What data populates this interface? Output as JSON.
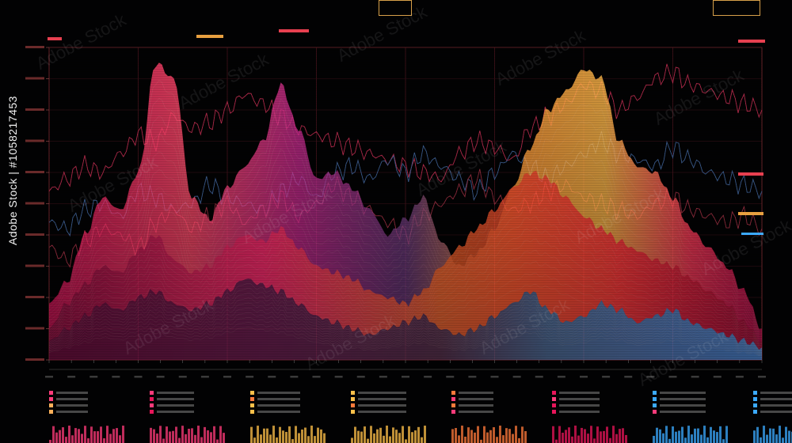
{
  "chart_data": {
    "type": "area",
    "x": [
      0,
      1,
      2,
      3,
      4,
      5,
      6,
      7,
      8,
      9,
      10,
      11,
      12,
      13,
      14,
      15,
      16,
      17,
      18,
      19,
      20,
      21,
      22,
      23,
      24,
      25,
      26,
      27,
      28,
      29,
      30,
      31,
      32,
      33,
      34,
      35,
      36,
      37,
      38,
      39,
      40
    ],
    "series": [
      {
        "values": [
          18,
          25,
          40,
          52,
          48,
          60,
          95,
          90,
          52,
          45,
          55,
          62,
          70,
          88,
          74,
          58,
          60,
          55,
          48,
          40,
          45,
          52,
          38,
          30,
          34,
          42,
          55,
          68,
          80,
          86,
          93,
          90,
          70,
          62,
          60,
          52,
          42,
          36,
          30,
          22,
          10
        ]
      },
      {
        "values": [
          10,
          18,
          24,
          30,
          28,
          35,
          40,
          32,
          28,
          30,
          36,
          40,
          38,
          42,
          36,
          30,
          28,
          26,
          22,
          20,
          18,
          22,
          30,
          36,
          42,
          48,
          55,
          60,
          58,
          52,
          46,
          42,
          38,
          35,
          32,
          30,
          26,
          22,
          18,
          12,
          6
        ]
      },
      {
        "values": [
          6,
          10,
          14,
          18,
          16,
          20,
          22,
          18,
          16,
          18,
          22,
          26,
          24,
          22,
          18,
          14,
          12,
          10,
          8,
          10,
          12,
          14,
          10,
          8,
          10,
          14,
          18,
          22,
          16,
          12,
          14,
          18,
          16,
          12,
          14,
          16,
          12,
          10,
          8,
          6,
          4
        ]
      }
    ],
    "lines": [
      {
        "values": [
          54,
          58,
          62,
          60,
          66,
          72,
          70,
          78,
          74,
          76,
          80,
          85,
          82,
          78,
          74,
          72,
          70,
          68,
          66,
          64,
          62,
          60,
          58,
          66,
          70,
          68,
          64,
          74,
          78,
          82,
          88,
          86,
          80,
          84,
          90,
          92,
          88,
          86,
          84,
          82,
          80
        ]
      },
      {
        "values": [
          44,
          42,
          48,
          50,
          46,
          54,
          52,
          48,
          50,
          56,
          52,
          50,
          48,
          54,
          58,
          52,
          60,
          62,
          58,
          64,
          60,
          66,
          62,
          58,
          54,
          60,
          66,
          62,
          58,
          62,
          66,
          70,
          66,
          64,
          62,
          68,
          64,
          60,
          58,
          56,
          54
        ]
      },
      {
        "values": [
          36,
          32,
          38,
          42,
          40,
          36,
          44,
          48,
          42,
          46,
          50,
          44,
          48,
          52,
          46,
          50,
          56,
          52,
          48,
          44,
          40,
          46,
          50,
          54,
          58,
          52,
          48,
          50,
          54,
          56,
          52,
          50,
          48,
          46,
          50,
          52,
          48,
          46,
          44,
          46,
          42
        ]
      }
    ],
    "ylim": [
      0,
      100
    ],
    "grid": true,
    "palette": [
      "#ff3b7a",
      "#ff7a3b",
      "#ffc04a",
      "#8a3bd1",
      "#3ba9ff",
      "#e8155a"
    ]
  },
  "legend": [
    {
      "color": "#ff3b7a",
      "items": [
        "#ff3b7a",
        "#ff3b7a",
        "#ffb05a",
        "#ffb05a"
      ]
    },
    {
      "color": "#ff3b7a",
      "items": [
        "#ff3b7a",
        "#e8155a",
        "#ff3b7a",
        "#e8155a"
      ]
    },
    {
      "color": "#ffc04a",
      "items": [
        "#ffc04a",
        "#ff7a3b",
        "#ffc04a",
        "#ffc04a"
      ]
    },
    {
      "color": "#ffc04a",
      "items": [
        "#ffc04a",
        "#ffc04a",
        "#ff7a3b",
        "#ffc04a"
      ]
    },
    {
      "color": "#ff7a3b",
      "items": [
        "#ff7a3b",
        "#ff3b7a",
        "#ff7a3b",
        "#ff3b7a"
      ]
    },
    {
      "color": "#e8155a",
      "items": [
        "#e8155a",
        "#ff3b7a",
        "#e8155a",
        "#e8155a"
      ]
    },
    {
      "color": "#3ba9ff",
      "items": [
        "#3ba9ff",
        "#3ba9ff",
        "#3ba9ff",
        "#ff3b7a"
      ]
    },
    {
      "color": "#3ba9ff",
      "items": [
        "#3ba9ff",
        "#3ba9ff",
        "#3ba9ff",
        "#3ba9ff"
      ]
    }
  ],
  "stock_id": "Adobe Stock | #1058217453",
  "watermark": "Adobe Stock"
}
